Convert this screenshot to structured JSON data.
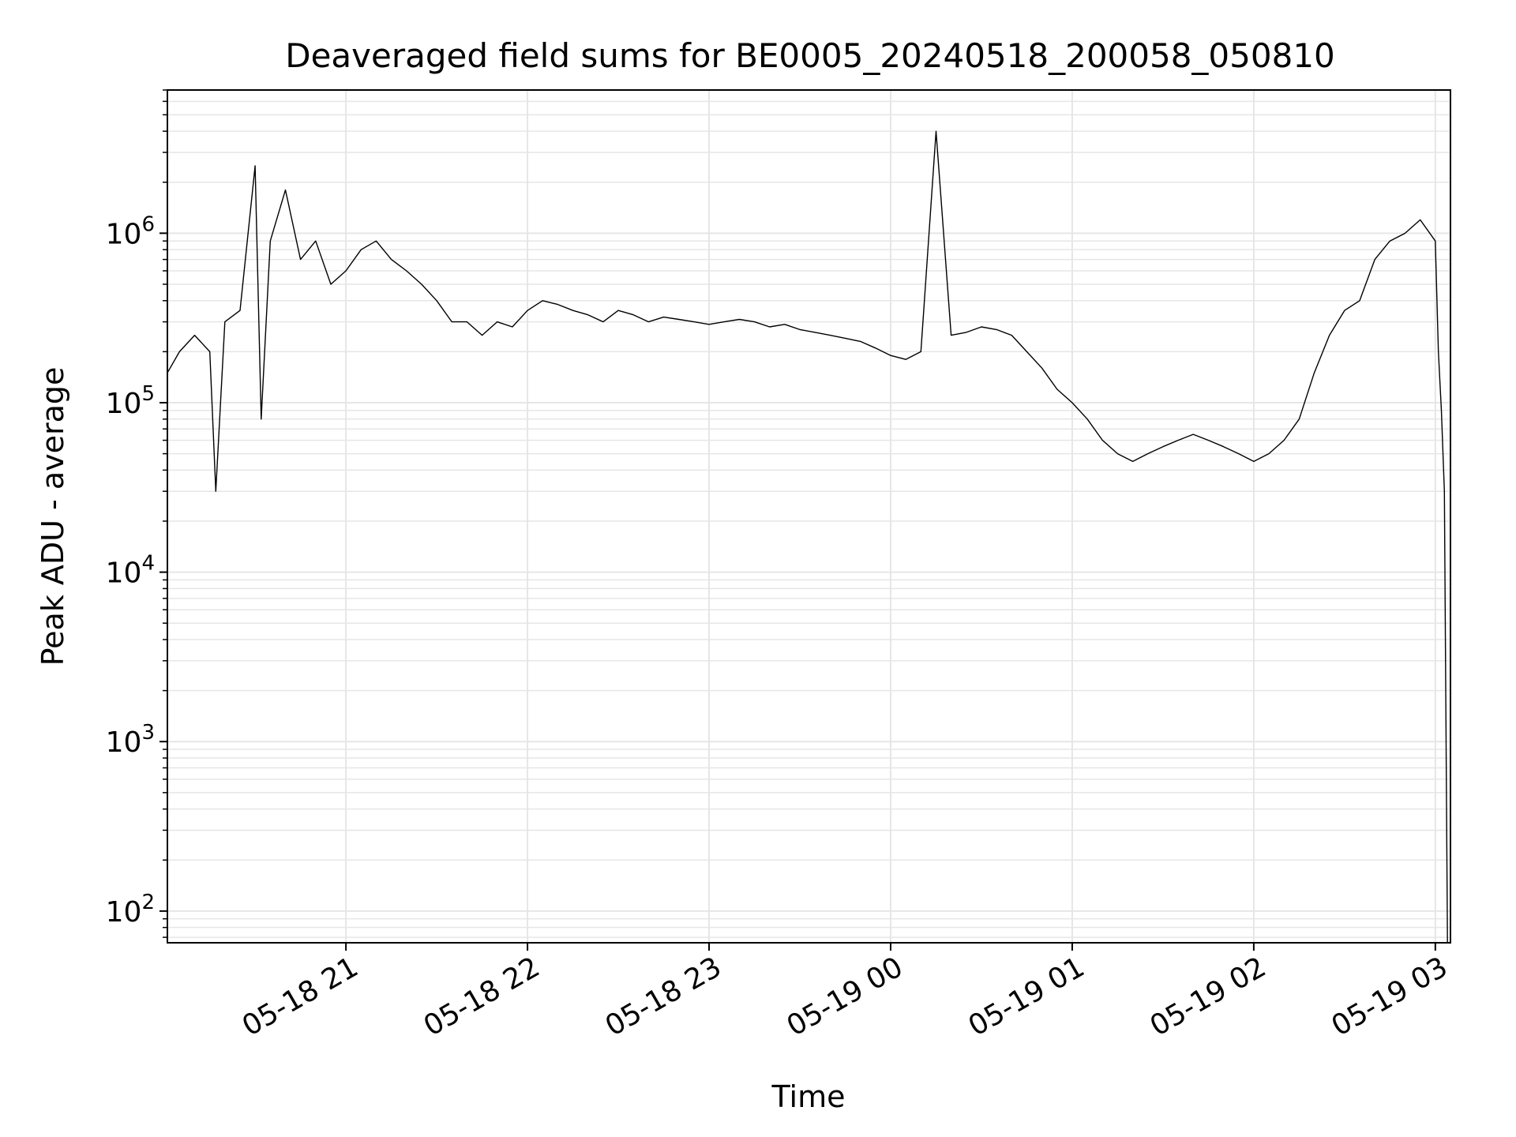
{
  "chart_data": {
    "type": "line",
    "title": "Deaveraged field sums for BE0005_20240518_200058_050810",
    "xlabel": "Time",
    "ylabel": "Peak ADU - average",
    "yscale": "log",
    "ylim": [
      65,
      7000000
    ],
    "xlim": [
      "2024-05-18 20:01",
      "2024-05-19 03:05"
    ],
    "grid": true,
    "x_ticks": [
      "2024-05-18 21:00",
      "2024-05-18 22:00",
      "2024-05-18 23:00",
      "2024-05-19 00:00",
      "2024-05-19 01:00",
      "2024-05-19 02:00",
      "2024-05-19 03:00"
    ],
    "x_tick_labels": [
      "05-18 21",
      "05-18 22",
      "05-18 23",
      "05-19 00",
      "05-19 01",
      "05-19 02",
      "05-19 03"
    ],
    "y_ticks": [
      100,
      1000,
      10000,
      100000,
      1000000
    ],
    "y_tick_labels": [
      {
        "base": "10",
        "exp": "2"
      },
      {
        "base": "10",
        "exp": "3"
      },
      {
        "base": "10",
        "exp": "4"
      },
      {
        "base": "10",
        "exp": "5"
      },
      {
        "base": "10",
        "exp": "6"
      }
    ],
    "line_color": "#000000",
    "grid_color": "#e6e6e6",
    "series": [
      {
        "x": [
          "2024-05-18 20:01",
          "2024-05-18 20:05",
          "2024-05-18 20:10",
          "2024-05-18 20:15",
          "2024-05-18 20:17",
          "2024-05-18 20:20",
          "2024-05-18 20:25",
          "2024-05-18 20:30",
          "2024-05-18 20:32",
          "2024-05-18 20:35",
          "2024-05-18 20:40",
          "2024-05-18 20:45",
          "2024-05-18 20:50",
          "2024-05-18 20:55",
          "2024-05-18 21:00",
          "2024-05-18 21:05",
          "2024-05-18 21:10",
          "2024-05-18 21:15",
          "2024-05-18 21:20",
          "2024-05-18 21:25",
          "2024-05-18 21:30",
          "2024-05-18 21:35",
          "2024-05-18 21:40",
          "2024-05-18 21:45",
          "2024-05-18 21:50",
          "2024-05-18 21:55",
          "2024-05-18 22:00",
          "2024-05-18 22:05",
          "2024-05-18 22:10",
          "2024-05-18 22:15",
          "2024-05-18 22:20",
          "2024-05-18 22:25",
          "2024-05-18 22:30",
          "2024-05-18 22:35",
          "2024-05-18 22:40",
          "2024-05-18 22:45",
          "2024-05-18 22:50",
          "2024-05-18 22:55",
          "2024-05-18 23:00",
          "2024-05-18 23:05",
          "2024-05-18 23:10",
          "2024-05-18 23:15",
          "2024-05-18 23:20",
          "2024-05-18 23:25",
          "2024-05-18 23:30",
          "2024-05-18 23:35",
          "2024-05-18 23:40",
          "2024-05-18 23:45",
          "2024-05-18 23:50",
          "2024-05-18 23:55",
          "2024-05-19 00:00",
          "2024-05-19 00:05",
          "2024-05-19 00:10",
          "2024-05-19 00:15",
          "2024-05-19 00:20",
          "2024-05-19 00:25",
          "2024-05-19 00:30",
          "2024-05-19 00:35",
          "2024-05-19 00:40",
          "2024-05-19 00:45",
          "2024-05-19 00:50",
          "2024-05-19 00:55",
          "2024-05-19 01:00",
          "2024-05-19 01:05",
          "2024-05-19 01:10",
          "2024-05-19 01:15",
          "2024-05-19 01:20",
          "2024-05-19 01:25",
          "2024-05-19 01:30",
          "2024-05-19 01:35",
          "2024-05-19 01:40",
          "2024-05-19 01:45",
          "2024-05-19 01:50",
          "2024-05-19 01:55",
          "2024-05-19 02:00",
          "2024-05-19 02:05",
          "2024-05-19 02:10",
          "2024-05-19 02:15",
          "2024-05-19 02:20",
          "2024-05-19 02:25",
          "2024-05-19 02:30",
          "2024-05-19 02:35",
          "2024-05-19 02:40",
          "2024-05-19 02:45",
          "2024-05-19 02:50",
          "2024-05-19 02:55",
          "2024-05-19 03:00",
          "2024-05-19 03:01",
          "2024-05-19 03:02",
          "2024-05-19 03:03",
          "2024-05-19 03:04"
        ],
        "y": [
          150000,
          200000,
          250000,
          200000,
          30000,
          300000,
          350000,
          2500000,
          80000,
          900000,
          1800000,
          700000,
          900000,
          500000,
          600000,
          800000,
          900000,
          700000,
          600000,
          500000,
          400000,
          300000,
          300000,
          250000,
          300000,
          280000,
          350000,
          400000,
          380000,
          350000,
          330000,
          300000,
          350000,
          330000,
          300000,
          320000,
          310000,
          300000,
          290000,
          300000,
          310000,
          300000,
          280000,
          290000,
          270000,
          260000,
          250000,
          240000,
          230000,
          210000,
          190000,
          180000,
          200000,
          4000000,
          250000,
          260000,
          280000,
          270000,
          250000,
          200000,
          160000,
          120000,
          100000,
          80000,
          60000,
          50000,
          45000,
          50000,
          55000,
          60000,
          65000,
          60000,
          55000,
          50000,
          45000,
          50000,
          60000,
          80000,
          150000,
          250000,
          350000,
          400000,
          700000,
          900000,
          1000000,
          1200000,
          900000,
          200000,
          90000,
          30000,
          65
        ]
      }
    ]
  }
}
